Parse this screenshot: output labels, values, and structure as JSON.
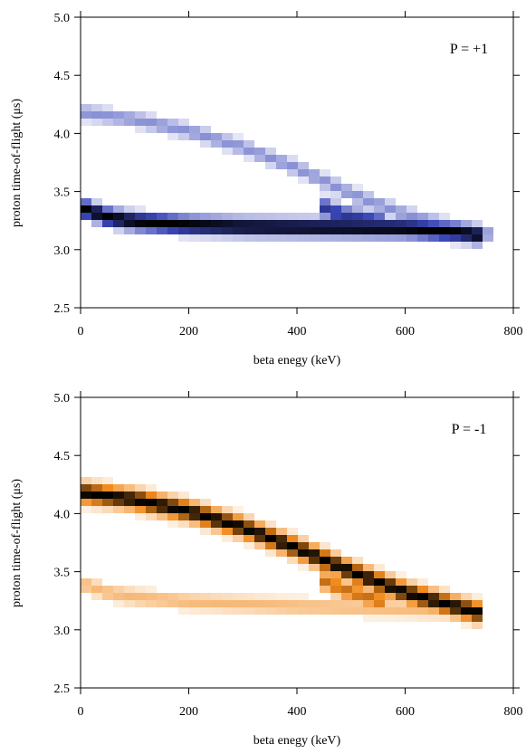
{
  "chart_data": [
    {
      "type": "heatmap",
      "panel_label": "P = +1",
      "xlabel": "beta enegy (keV)",
      "ylabel": "proton time-of-flight (μs)",
      "xlim": [
        0,
        800
      ],
      "ylim": [
        2.5,
        5.0
      ],
      "x_ticks": [
        0,
        200,
        400,
        600,
        800
      ],
      "x_tick_labels": [
        "0",
        "200",
        "400",
        "600",
        "800"
      ],
      "y_ticks": [
        2.5,
        3.0,
        3.5,
        4.0,
        4.5,
        5.0
      ],
      "y_tick_labels": [
        "2.5",
        "3.0",
        "3.5",
        "4.0",
        "4.5",
        "5.0"
      ],
      "grid": false,
      "colors": {
        "low": "#ffffff",
        "mid": "#3a46b8",
        "high": "#000000"
      },
      "bands": [
        {
          "description": "upper branch (weak intensity)",
          "path": [
            [
              0,
              4.18
            ],
            [
              100,
              4.12
            ],
            [
              200,
              4.02
            ],
            [
              300,
              3.88
            ],
            [
              400,
              3.7
            ],
            [
              500,
              3.48
            ],
            [
              600,
              3.3
            ],
            [
              700,
              3.18
            ],
            [
              770,
              3.12
            ]
          ],
          "half_width": 0.065,
          "peak_intensity": 0.3
        },
        {
          "description": "lower branch (strong intensity)",
          "path": [
            [
              0,
              3.36
            ],
            [
              50,
              3.28
            ],
            [
              100,
              3.24
            ],
            [
              200,
              3.21
            ],
            [
              300,
              3.195
            ],
            [
              400,
              3.19
            ],
            [
              500,
              3.185
            ],
            [
              600,
              3.18
            ],
            [
              700,
              3.15
            ],
            [
              740,
              3.12
            ]
          ],
          "half_width": 0.07,
          "peak_intensity": 1.0
        },
        {
          "description": "connecting region near 450-560 keV",
          "path": [
            [
              450,
              3.36
            ],
            [
              480,
              3.3
            ],
            [
              520,
              3.26
            ],
            [
              560,
              3.23
            ]
          ],
          "half_width": 0.08,
          "peak_intensity": 0.6
        }
      ]
    },
    {
      "type": "heatmap",
      "panel_label": "P = -1",
      "xlabel": "beta enegy (keV)",
      "ylabel": "proton time-of-flight (μs)",
      "xlim": [
        0,
        800
      ],
      "ylim": [
        2.5,
        5.0
      ],
      "x_ticks": [
        0,
        200,
        400,
        600,
        800
      ],
      "x_tick_labels": [
        "0",
        "200",
        "400",
        "600",
        "800"
      ],
      "y_ticks": [
        2.5,
        3.0,
        3.5,
        4.0,
        4.5,
        5.0
      ],
      "y_tick_labels": [
        "2.5",
        "3.0",
        "3.5",
        "4.0",
        "4.5",
        "5.0"
      ],
      "grid": false,
      "colors": {
        "low": "#ffffff",
        "mid": "#f28a1c",
        "high": "#000000"
      },
      "bands": [
        {
          "description": "upper branch (strong intensity)",
          "path": [
            [
              0,
              4.18
            ],
            [
              100,
              4.12
            ],
            [
              200,
              4.02
            ],
            [
              300,
              3.88
            ],
            [
              400,
              3.7
            ],
            [
              500,
              3.5
            ],
            [
              600,
              3.32
            ],
            [
              700,
              3.19
            ],
            [
              750,
              3.13
            ]
          ],
          "half_width": 0.085,
          "peak_intensity": 1.0
        },
        {
          "description": "lower branch (weak intensity)",
          "path": [
            [
              0,
              3.4
            ],
            [
              50,
              3.32
            ],
            [
              100,
              3.28
            ],
            [
              200,
              3.24
            ],
            [
              300,
              3.22
            ],
            [
              400,
              3.2
            ],
            [
              500,
              3.19
            ],
            [
              600,
              3.18
            ],
            [
              700,
              3.16
            ],
            [
              740,
              3.13
            ]
          ],
          "half_width": 0.07,
          "peak_intensity": 0.3
        },
        {
          "description": "connecting region near 450-560 keV",
          "path": [
            [
              450,
              3.42
            ],
            [
              490,
              3.34
            ],
            [
              530,
              3.28
            ],
            [
              560,
              3.24
            ]
          ],
          "half_width": 0.08,
          "peak_intensity": 0.6
        }
      ]
    }
  ]
}
